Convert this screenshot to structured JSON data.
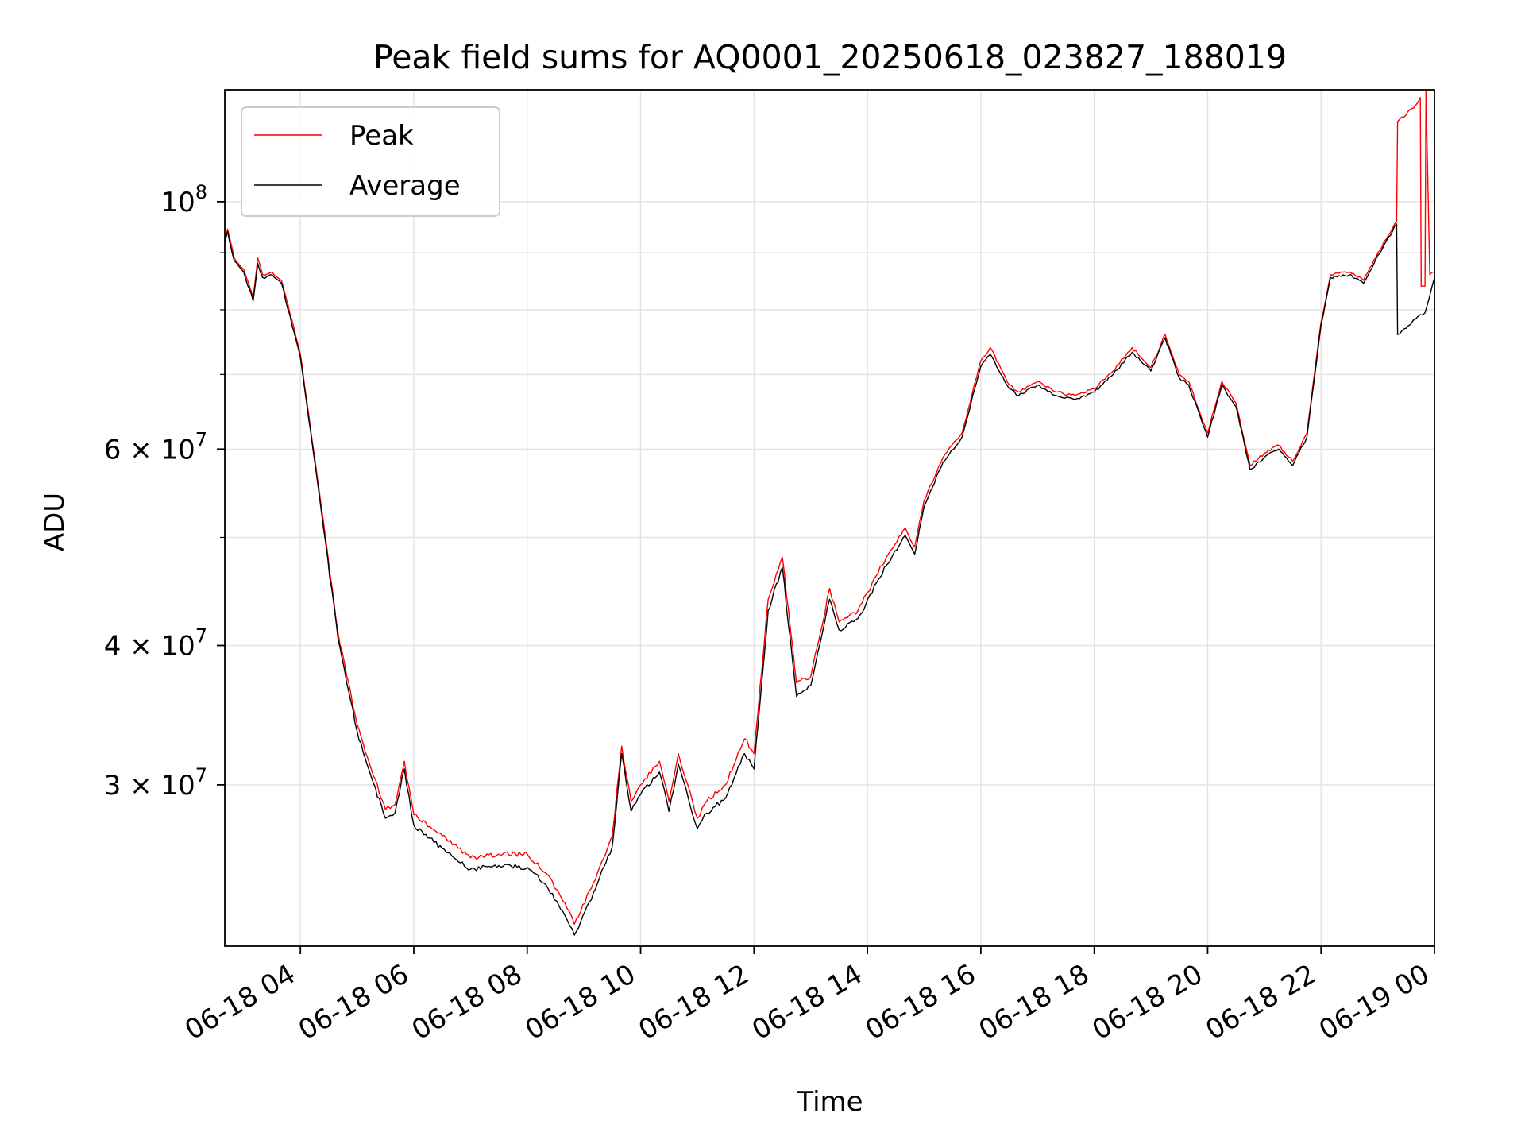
{
  "chart_data": {
    "type": "line",
    "title": "Peak field sums for AQ0001_20250618_023827_188019",
    "xlabel": "Time",
    "ylabel": "ADU",
    "yscale": "log",
    "xlim": [
      "2025-06-18 02:40",
      "2025-06-19 00:00"
    ],
    "ylim": [
      21500000,
      126000000
    ],
    "grid": true,
    "legend_position": "top-left",
    "x_ticks": [
      {
        "value": "2025-06-18 04:00",
        "label": "06-18 04"
      },
      {
        "value": "2025-06-18 06:00",
        "label": "06-18 06"
      },
      {
        "value": "2025-06-18 08:00",
        "label": "06-18 08"
      },
      {
        "value": "2025-06-18 10:00",
        "label": "06-18 10"
      },
      {
        "value": "2025-06-18 12:00",
        "label": "06-18 12"
      },
      {
        "value": "2025-06-18 14:00",
        "label": "06-18 14"
      },
      {
        "value": "2025-06-18 16:00",
        "label": "06-18 16"
      },
      {
        "value": "2025-06-18 18:00",
        "label": "06-18 18"
      },
      {
        "value": "2025-06-18 20:00",
        "label": "06-18 20"
      },
      {
        "value": "2025-06-18 22:00",
        "label": "06-18 22"
      },
      {
        "value": "2025-06-19 00:00",
        "label": "06-19 00"
      }
    ],
    "y_major_ticks": [
      {
        "value": 30000000,
        "mantissa": "3",
        "base": "10",
        "exp": "7"
      },
      {
        "value": 40000000,
        "mantissa": "4",
        "base": "10",
        "exp": "7"
      },
      {
        "value": 60000000,
        "mantissa": "6",
        "base": "10",
        "exp": "7"
      },
      {
        "value": 100000000,
        "mantissa": "",
        "base": "10",
        "exp": "8"
      }
    ],
    "y_minor_ticks": [
      50000000,
      70000000,
      80000000,
      90000000
    ],
    "colors": {
      "Peak": "#ff0000",
      "Average": "#000000"
    },
    "series": [
      {
        "name": "Peak",
        "x": [
          "2025-06-18 02:40",
          "2025-06-18 02:43",
          "2025-06-18 02:50",
          "2025-06-18 03:00",
          "2025-06-18 03:10",
          "2025-06-18 03:15",
          "2025-06-18 03:20",
          "2025-06-18 03:30",
          "2025-06-18 03:40",
          "2025-06-18 04:00",
          "2025-06-18 04:20",
          "2025-06-18 04:40",
          "2025-06-18 05:00",
          "2025-06-18 05:15",
          "2025-06-18 05:30",
          "2025-06-18 05:40",
          "2025-06-18 05:50",
          "2025-06-18 06:00",
          "2025-06-18 06:30",
          "2025-06-18 07:00",
          "2025-06-18 07:30",
          "2025-06-18 08:00",
          "2025-06-18 08:20",
          "2025-06-18 08:40",
          "2025-06-18 08:50",
          "2025-06-18 09:10",
          "2025-06-18 09:30",
          "2025-06-18 09:40",
          "2025-06-18 09:50",
          "2025-06-18 10:00",
          "2025-06-18 10:20",
          "2025-06-18 10:30",
          "2025-06-18 10:40",
          "2025-06-18 10:50",
          "2025-06-18 11:00",
          "2025-06-18 11:10",
          "2025-06-18 11:30",
          "2025-06-18 11:50",
          "2025-06-18 12:00",
          "2025-06-18 12:15",
          "2025-06-18 12:30",
          "2025-06-18 12:45",
          "2025-06-18 13:00",
          "2025-06-18 13:10",
          "2025-06-18 13:20",
          "2025-06-18 13:30",
          "2025-06-18 13:50",
          "2025-06-18 14:20",
          "2025-06-18 14:40",
          "2025-06-18 14:50",
          "2025-06-18 15:00",
          "2025-06-18 15:20",
          "2025-06-18 15:40",
          "2025-06-18 16:00",
          "2025-06-18 16:10",
          "2025-06-18 16:30",
          "2025-06-18 16:40",
          "2025-06-18 17:00",
          "2025-06-18 17:20",
          "2025-06-18 17:40",
          "2025-06-18 18:00",
          "2025-06-18 18:20",
          "2025-06-18 18:40",
          "2025-06-18 19:00",
          "2025-06-18 19:15",
          "2025-06-18 19:30",
          "2025-06-18 19:40",
          "2025-06-18 20:00",
          "2025-06-18 20:15",
          "2025-06-18 20:30",
          "2025-06-18 20:45",
          "2025-06-18 21:00",
          "2025-06-18 21:15",
          "2025-06-18 21:30",
          "2025-06-18 21:45",
          "2025-06-18 22:00",
          "2025-06-18 22:10",
          "2025-06-18 22:30",
          "2025-06-18 22:45",
          "2025-06-18 23:00",
          "2025-06-18 23:20",
          "2025-06-18 23:21",
          "2025-06-18 23:40",
          "2025-06-18 23:45",
          "2025-06-18 23:46",
          "2025-06-18 23:50",
          "2025-06-18 23:51",
          "2025-06-18 23:55",
          "2025-06-19 00:00"
        ],
        "y": [
          92000000,
          94500000,
          89000000,
          87000000,
          82000000,
          89000000,
          86000000,
          86500000,
          85000000,
          73000000,
          55000000,
          41000000,
          34000000,
          31000000,
          28500000,
          28800000,
          31500000,
          28200000,
          27000000,
          25800000,
          26000000,
          26000000,
          25000000,
          23500000,
          22500000,
          24500000,
          27000000,
          32500000,
          29000000,
          30000000,
          31500000,
          29000000,
          32000000,
          30000000,
          28000000,
          29000000,
          30000000,
          33000000,
          32000000,
          44000000,
          48000000,
          37000000,
          37500000,
          41000000,
          45000000,
          42000000,
          43000000,
          48000000,
          51000000,
          49000000,
          54000000,
          59000000,
          62000000,
          72000000,
          74000000,
          68500000,
          67500000,
          69000000,
          67500000,
          67000000,
          68000000,
          70500000,
          74000000,
          71000000,
          76000000,
          70000000,
          69000000,
          62000000,
          69000000,
          66000000,
          58000000,
          59500000,
          60500000,
          58500000,
          62000000,
          78000000,
          86000000,
          86500000,
          85000000,
          90000000,
          96000000,
          118000000,
          122000000,
          124000000,
          84000000,
          84000000,
          126000000,
          86000000,
          86500000
        ]
      },
      {
        "name": "Average",
        "x": [
          "2025-06-18 02:40",
          "2025-06-18 02:43",
          "2025-06-18 02:50",
          "2025-06-18 03:00",
          "2025-06-18 03:10",
          "2025-06-18 03:15",
          "2025-06-18 03:20",
          "2025-06-18 03:30",
          "2025-06-18 03:40",
          "2025-06-18 04:00",
          "2025-06-18 04:20",
          "2025-06-18 04:40",
          "2025-06-18 05:00",
          "2025-06-18 05:15",
          "2025-06-18 05:30",
          "2025-06-18 05:40",
          "2025-06-18 05:50",
          "2025-06-18 06:00",
          "2025-06-18 06:30",
          "2025-06-18 07:00",
          "2025-06-18 07:30",
          "2025-06-18 08:00",
          "2025-06-18 08:20",
          "2025-06-18 08:40",
          "2025-06-18 08:50",
          "2025-06-18 09:10",
          "2025-06-18 09:30",
          "2025-06-18 09:40",
          "2025-06-18 09:50",
          "2025-06-18 10:00",
          "2025-06-18 10:20",
          "2025-06-18 10:30",
          "2025-06-18 10:40",
          "2025-06-18 10:50",
          "2025-06-18 11:00",
          "2025-06-18 11:10",
          "2025-06-18 11:30",
          "2025-06-18 11:50",
          "2025-06-18 12:00",
          "2025-06-18 12:15",
          "2025-06-18 12:30",
          "2025-06-18 12:45",
          "2025-06-18 13:00",
          "2025-06-18 13:10",
          "2025-06-18 13:20",
          "2025-06-18 13:30",
          "2025-06-18 13:50",
          "2025-06-18 14:20",
          "2025-06-18 14:40",
          "2025-06-18 14:50",
          "2025-06-18 15:00",
          "2025-06-18 15:20",
          "2025-06-18 15:40",
          "2025-06-18 16:00",
          "2025-06-18 16:10",
          "2025-06-18 16:30",
          "2025-06-18 16:40",
          "2025-06-18 17:00",
          "2025-06-18 17:20",
          "2025-06-18 17:40",
          "2025-06-18 18:00",
          "2025-06-18 18:20",
          "2025-06-18 18:40",
          "2025-06-18 19:00",
          "2025-06-18 19:15",
          "2025-06-18 19:30",
          "2025-06-18 19:40",
          "2025-06-18 20:00",
          "2025-06-18 20:15",
          "2025-06-18 20:30",
          "2025-06-18 20:45",
          "2025-06-18 21:00",
          "2025-06-18 21:15",
          "2025-06-18 21:30",
          "2025-06-18 21:45",
          "2025-06-18 22:00",
          "2025-06-18 22:10",
          "2025-06-18 22:30",
          "2025-06-18 22:45",
          "2025-06-18 23:00",
          "2025-06-18 23:20",
          "2025-06-18 23:21",
          "2025-06-18 23:30",
          "2025-06-18 23:40",
          "2025-06-18 23:50",
          "2025-06-19 00:00"
        ],
        "y": [
          92000000,
          94000000,
          88500000,
          86500000,
          81500000,
          88000000,
          85500000,
          86000000,
          84500000,
          72500000,
          54500000,
          40500000,
          33500000,
          30500000,
          28000000,
          28300000,
          31000000,
          27600000,
          26300000,
          25200000,
          25400000,
          25300000,
          24400000,
          22900000,
          22000000,
          24000000,
          26400000,
          32000000,
          28400000,
          29400000,
          30800000,
          28400000,
          31300000,
          29300000,
          27400000,
          28300000,
          29200000,
          32000000,
          31000000,
          43000000,
          47000000,
          36000000,
          36800000,
          40200000,
          44000000,
          41300000,
          42300000,
          47200000,
          50200000,
          48300000,
          53300000,
          58400000,
          61500000,
          71200000,
          73000000,
          68000000,
          67000000,
          68500000,
          67000000,
          66500000,
          67500000,
          70000000,
          73300000,
          70500000,
          75500000,
          69500000,
          68500000,
          61500000,
          68500000,
          65500000,
          57500000,
          59000000,
          60000000,
          58000000,
          61500000,
          77500000,
          85500000,
          86000000,
          84500000,
          89500000,
          95500000,
          76000000,
          77000000,
          78500000,
          79500000,
          85500000
        ]
      }
    ]
  }
}
